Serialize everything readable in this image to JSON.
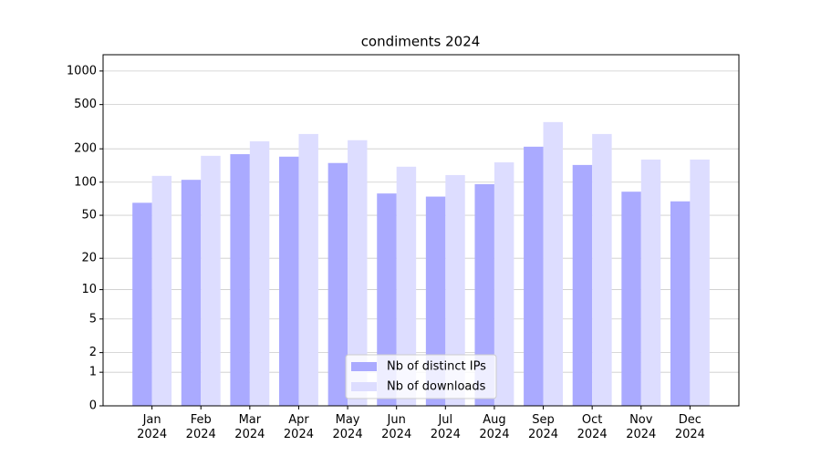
{
  "chart_data": {
    "type": "bar",
    "title": "condiments 2024",
    "categories": [
      "Jan\n2024",
      "Feb\n2024",
      "Mar\n2024",
      "Apr\n2024",
      "May\n2024",
      "Jun\n2024",
      "Jul\n2024",
      "Aug\n2024",
      "Sep\n2024",
      "Oct\n2024",
      "Nov\n2024",
      "Dec\n2024"
    ],
    "series": [
      {
        "name": "Nb of distinct IPs",
        "color": "#aaaaff",
        "values": [
          65,
          105,
          179,
          170,
          149,
          79,
          74,
          96,
          209,
          143,
          82,
          67
        ]
      },
      {
        "name": "Nb of downloads",
        "color": "#ddddff",
        "values": [
          114,
          173,
          234,
          272,
          239,
          138,
          116,
          151,
          348,
          272,
          160,
          160
        ]
      }
    ],
    "yscale": "log1p",
    "ylim": [
      0,
      1400
    ],
    "yticks": [
      0,
      1,
      2,
      5,
      10,
      20,
      50,
      100,
      200,
      500,
      1000
    ],
    "grid": true,
    "legend": "lower center"
  }
}
